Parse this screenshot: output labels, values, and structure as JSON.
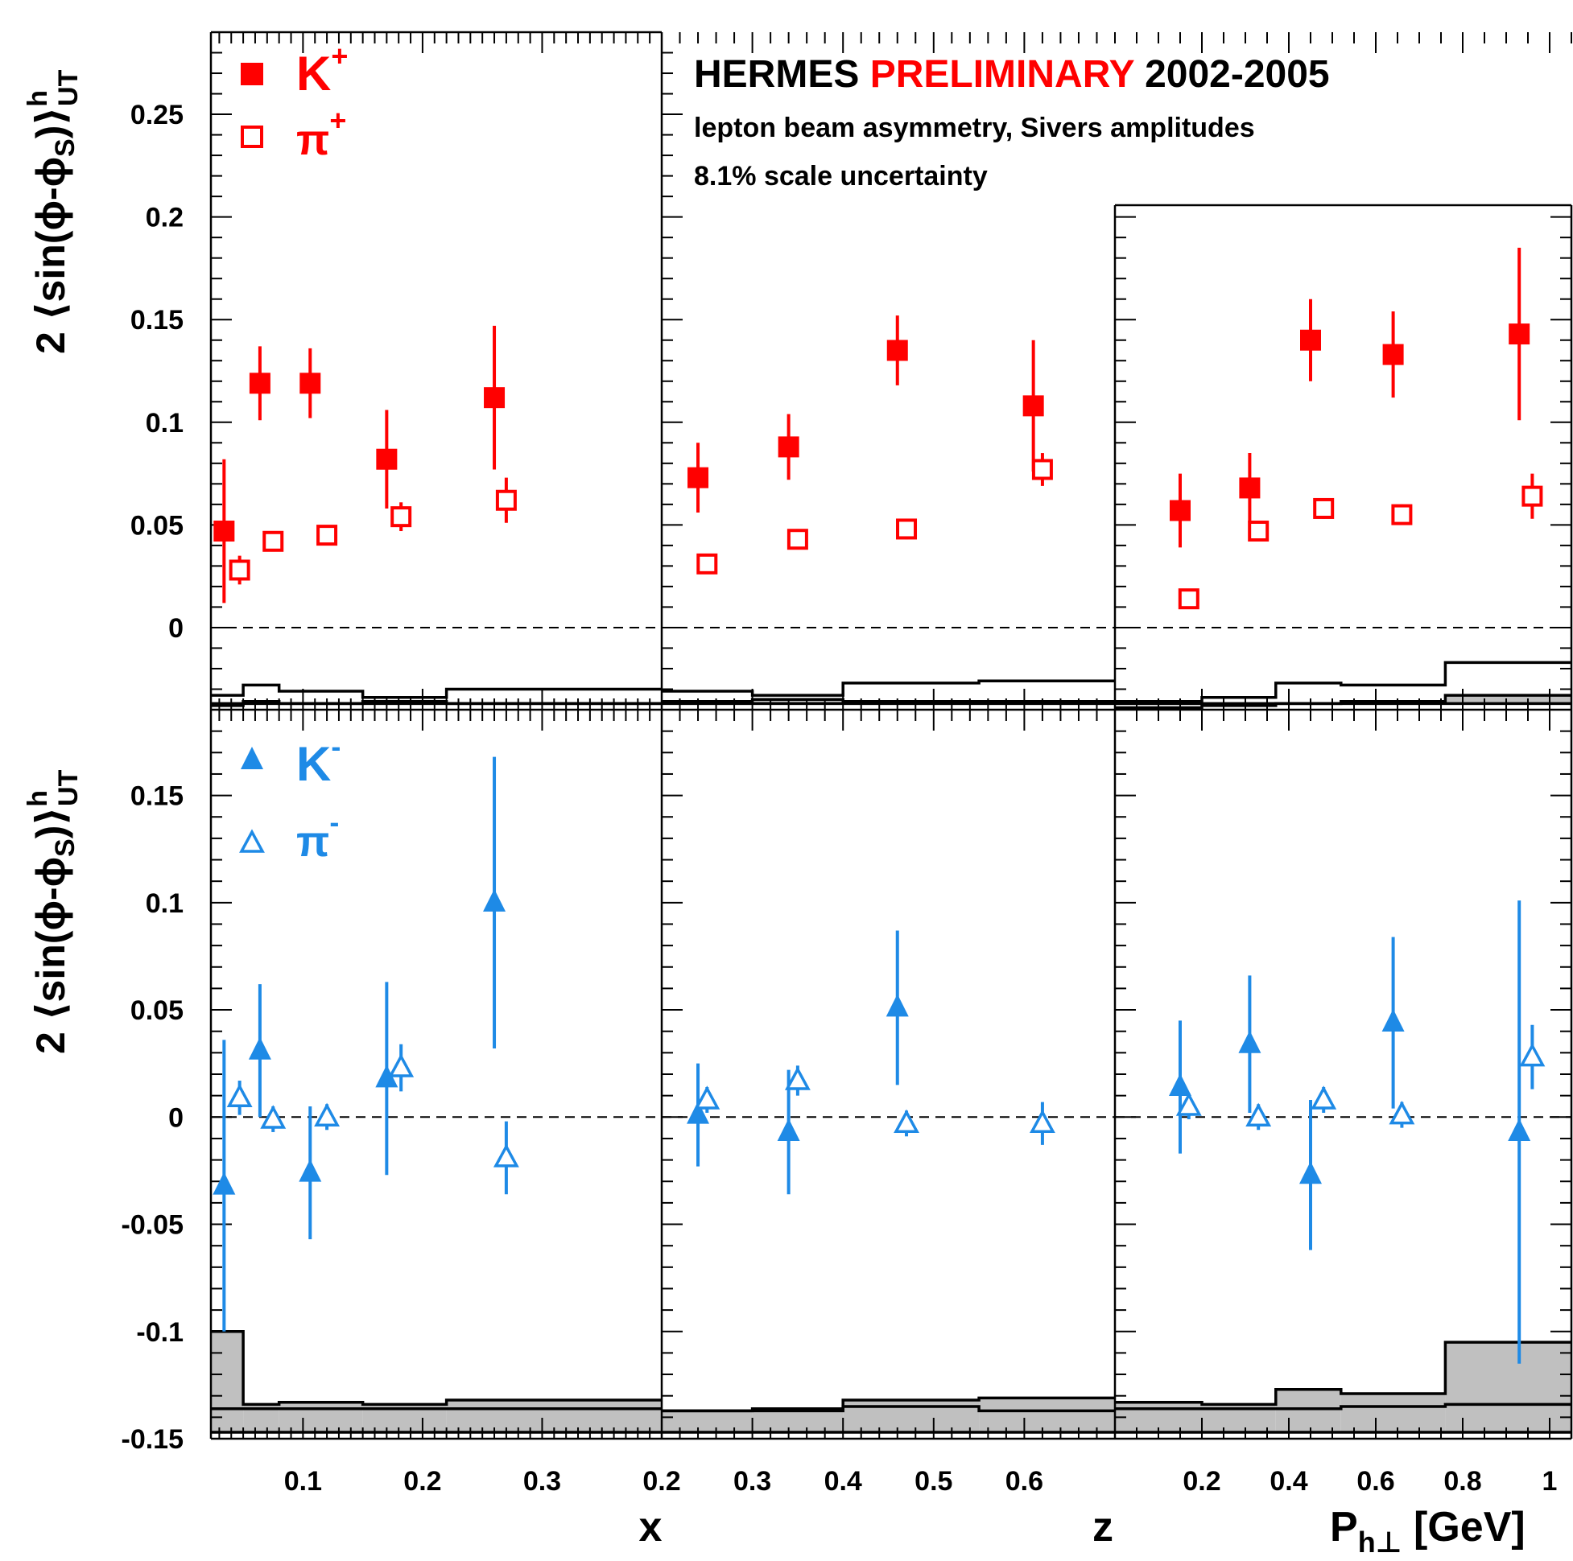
{
  "header": {
    "title_part1": "HERMES",
    "title_part2": "PRELIMINARY",
    "title_part3": "2002-2005",
    "line1": "lepton beam asymmetry, Sivers amplitudes",
    "line2": "8.1% scale uncertainty"
  },
  "colors": {
    "red": "#ff0000",
    "blue": "#1e8ae6",
    "band": "#c0c0c0"
  },
  "ylabels": {
    "top": {
      "prefix": "2 ⟨sin(ϕ-ϕ",
      "sub": "S",
      "suffix": ")⟩",
      "sup": "h",
      "sub2": "UT"
    },
    "bottom": {
      "prefix": "2 ⟨sin(ϕ-ϕ",
      "sub": "S",
      "suffix": ")⟩",
      "sup": "h",
      "sub2": "UT"
    }
  },
  "xlabels": {
    "x": {
      "main": "x"
    },
    "z": {
      "main": "z"
    },
    "pt": {
      "main": "P",
      "sub": "h⊥",
      "unit": " [GeV]"
    }
  },
  "legend": {
    "top": [
      {
        "symbol": "filled-square",
        "base": "K",
        "sup": "+"
      },
      {
        "symbol": "open-square",
        "base": "π",
        "sup": "+"
      }
    ],
    "bottom": [
      {
        "symbol": "filled-triangle",
        "base": "K",
        "sup": "-"
      },
      {
        "symbol": "open-triangle",
        "base": "π",
        "sup": "-"
      }
    ]
  },
  "chart_data": {
    "type": "scatter",
    "layout": "2 rows x 3 columns, shared y axis per row",
    "rows": [
      {
        "name": "top",
        "ylim": [
          -0.04,
          0.29
        ],
        "yticks": [
          0,
          0.05,
          0.1,
          0.15,
          0.2,
          0.25
        ],
        "ytick_labels": [
          "0",
          "0.05",
          "0.1",
          "0.15",
          "0.2",
          "0.25"
        ],
        "series": [
          "K+",
          "pi+"
        ]
      },
      {
        "name": "bottom",
        "ylim": [
          -0.15,
          0.19
        ],
        "yticks": [
          -0.15,
          -0.1,
          -0.05,
          0,
          0.05,
          0.1,
          0.15
        ],
        "ytick_labels": [
          "-0.15",
          "-0.1",
          "-0.05",
          "0",
          "0.05",
          "0.1",
          "0.15"
        ],
        "series": [
          "K-",
          "pi-"
        ]
      }
    ],
    "columns": [
      {
        "name": "x",
        "xlim": [
          0.023,
          0.4
        ],
        "xticks": [
          0.1,
          0.2,
          0.3
        ],
        "xtick_labels": [
          "0.1",
          "0.2",
          "0.3"
        ],
        "minor_step": 0.01
      },
      {
        "name": "z",
        "xlim": [
          0.2,
          0.7
        ],
        "xticks": [
          0.2,
          0.3,
          0.4,
          0.5,
          0.6
        ],
        "xtick_labels": [
          "0.2",
          "0.3",
          "0.4",
          "0.5",
          "0.6"
        ],
        "minor_step": 0.02
      },
      {
        "name": "pt",
        "xlim": [
          0.0,
          1.05
        ],
        "xticks": [
          0.2,
          0.4,
          0.6,
          0.8,
          1.0
        ],
        "xtick_labels": [
          "0.2",
          "0.4",
          "0.6",
          "0.8",
          "1"
        ],
        "minor_step": 0.05
      }
    ],
    "points": {
      "top": {
        "x": {
          "K+": [
            [
              0.034,
              0.047,
              0.035
            ],
            [
              0.064,
              0.119,
              0.018
            ],
            [
              0.106,
              0.119,
              0.017
            ],
            [
              0.17,
              0.082,
              0.024
            ],
            [
              0.26,
              0.112,
              0.035
            ]
          ],
          "pi+": [
            [
              0.047,
              0.028,
              0.007
            ],
            [
              0.075,
              0.042,
              0.005
            ],
            [
              0.12,
              0.045,
              0.004
            ],
            [
              0.182,
              0.054,
              0.007
            ],
            [
              0.27,
              0.062,
              0.011
            ]
          ]
        },
        "z": {
          "K+": [
            [
              0.24,
              0.073,
              0.017
            ],
            [
              0.34,
              0.088,
              0.016
            ],
            [
              0.46,
              0.135,
              0.017
            ],
            [
              0.61,
              0.108,
              0.032
            ]
          ],
          "pi+": [
            [
              0.25,
              0.031,
              0.004
            ],
            [
              0.35,
              0.043,
              0.005
            ],
            [
              0.47,
              0.048,
              0.005
            ],
            [
              0.62,
              0.077,
              0.008
            ]
          ]
        },
        "pt": {
          "K+": [
            [
              0.15,
              0.057,
              0.018
            ],
            [
              0.31,
              0.068,
              0.017
            ],
            [
              0.45,
              0.14,
              0.02
            ],
            [
              0.64,
              0.133,
              0.021
            ],
            [
              0.93,
              0.143,
              0.042
            ]
          ],
          "pi+": [
            [
              0.17,
              0.014,
              0.004
            ],
            [
              0.33,
              0.047,
              0.005
            ],
            [
              0.48,
              0.058,
              0.005
            ],
            [
              0.66,
              0.055,
              0.005
            ],
            [
              0.96,
              0.064,
              0.011
            ]
          ]
        }
      },
      "bottom": {
        "x": {
          "K-": [
            [
              0.034,
              -0.032,
              0.068
            ],
            [
              0.064,
              0.031,
              0.031
            ],
            [
              0.106,
              -0.026,
              0.031
            ],
            [
              0.17,
              0.018,
              0.045
            ],
            [
              0.26,
              0.1,
              0.068
            ]
          ],
          "pi-": [
            [
              0.047,
              0.009,
              0.008
            ],
            [
              0.075,
              -0.001,
              0.006
            ],
            [
              0.12,
              0.0,
              0.006
            ],
            [
              0.182,
              0.023,
              0.011
            ],
            [
              0.27,
              -0.019,
              0.017
            ]
          ]
        },
        "z": {
          "K-": [
            [
              0.24,
              0.001,
              0.024
            ],
            [
              0.34,
              -0.007,
              0.029
            ],
            [
              0.46,
              0.051,
              0.036
            ]
          ],
          "pi-": [
            [
              0.25,
              0.008,
              0.006
            ],
            [
              0.35,
              0.017,
              0.007
            ],
            [
              0.47,
              -0.003,
              0.006
            ],
            [
              0.62,
              -0.003,
              0.01
            ]
          ]
        },
        "pt": {
          "K-": [
            [
              0.15,
              0.014,
              0.031
            ],
            [
              0.31,
              0.034,
              0.032
            ],
            [
              0.45,
              -0.027,
              0.035
            ],
            [
              0.64,
              0.044,
              0.04
            ],
            [
              0.93,
              -0.007,
              0.108
            ]
          ],
          "pi-": [
            [
              0.17,
              0.005,
              0.006
            ],
            [
              0.33,
              0.0,
              0.006
            ],
            [
              0.48,
              0.008,
              0.006
            ],
            [
              0.66,
              0.001,
              0.006
            ],
            [
              0.96,
              0.028,
              0.015
            ]
          ]
        }
      }
    },
    "systematic_bands": {
      "top": {
        "x": {
          "pi": [
            [
              0.023,
              0.05,
              -0.033
            ],
            [
              0.05,
              0.08,
              -0.028
            ],
            [
              0.08,
              0.15,
              -0.031
            ],
            [
              0.15,
              0.22,
              -0.034
            ],
            [
              0.22,
              0.4,
              -0.03
            ]
          ],
          "K": [
            [
              0.023,
              0.05,
              -0.038
            ],
            [
              0.05,
              0.08,
              -0.036
            ],
            [
              0.08,
              0.15,
              -0.037
            ],
            [
              0.15,
              0.22,
              -0.036
            ],
            [
              0.22,
              0.4,
              -0.037
            ]
          ],
          "base": -0.04
        },
        "z": {
          "pi": [
            [
              0.2,
              0.3,
              -0.031
            ],
            [
              0.3,
              0.4,
              -0.033
            ],
            [
              0.4,
              0.55,
              -0.027
            ],
            [
              0.55,
              0.7,
              -0.026
            ]
          ],
          "K": [
            [
              0.2,
              0.3,
              -0.036
            ],
            [
              0.3,
              0.4,
              -0.035
            ],
            [
              0.4,
              0.55,
              -0.036
            ],
            [
              0.55,
              0.7,
              -0.036
            ]
          ],
          "base": -0.04
        },
        "pt": {
          "pi": [
            [
              0.0,
              0.2,
              -0.036
            ],
            [
              0.2,
              0.37,
              -0.034
            ],
            [
              0.37,
              0.52,
              -0.027
            ],
            [
              0.52,
              0.76,
              -0.028
            ],
            [
              0.76,
              1.05,
              -0.017
            ]
          ],
          "K": [
            [
              0.0,
              0.2,
              -0.039
            ],
            [
              0.2,
              0.37,
              -0.038
            ],
            [
              0.37,
              0.52,
              -0.037
            ],
            [
              0.52,
              0.76,
              -0.036
            ],
            [
              0.76,
              1.05,
              -0.033
            ]
          ],
          "base": -0.04
        }
      },
      "bottom": {
        "x": {
          "pi": [
            [
              0.023,
              0.05,
              -0.136
            ],
            [
              0.05,
              0.08,
              -0.136
            ],
            [
              0.08,
              0.15,
              -0.136
            ],
            [
              0.15,
              0.22,
              -0.136
            ],
            [
              0.22,
              0.4,
              -0.136
            ]
          ],
          "K": [
            [
              0.023,
              0.05,
              -0.1
            ],
            [
              0.05,
              0.08,
              -0.134
            ],
            [
              0.08,
              0.15,
              -0.133
            ],
            [
              0.15,
              0.22,
              -0.134
            ],
            [
              0.22,
              0.4,
              -0.132
            ]
          ],
          "base": -0.15
        },
        "z": {
          "pi": [
            [
              0.2,
              0.3,
              -0.137
            ],
            [
              0.3,
              0.4,
              -0.137
            ],
            [
              0.4,
              0.55,
              -0.135
            ],
            [
              0.55,
              0.7,
              -0.137
            ]
          ],
          "K": [
            [
              0.2,
              0.3,
              -0.137
            ],
            [
              0.3,
              0.4,
              -0.136
            ],
            [
              0.4,
              0.55,
              -0.132
            ],
            [
              0.55,
              0.7,
              -0.131
            ]
          ],
          "base": -0.15
        },
        "pt": {
          "pi": [
            [
              0.0,
              0.2,
              -0.136
            ],
            [
              0.2,
              0.37,
              -0.136
            ],
            [
              0.37,
              0.52,
              -0.136
            ],
            [
              0.52,
              0.76,
              -0.135
            ],
            [
              0.76,
              1.05,
              -0.134
            ]
          ],
          "K": [
            [
              0.0,
              0.2,
              -0.133
            ],
            [
              0.2,
              0.37,
              -0.134
            ],
            [
              0.37,
              0.52,
              -0.127
            ],
            [
              0.52,
              0.76,
              -0.129
            ],
            [
              0.76,
              1.05,
              -0.105
            ]
          ],
          "base": -0.15
        }
      }
    }
  }
}
